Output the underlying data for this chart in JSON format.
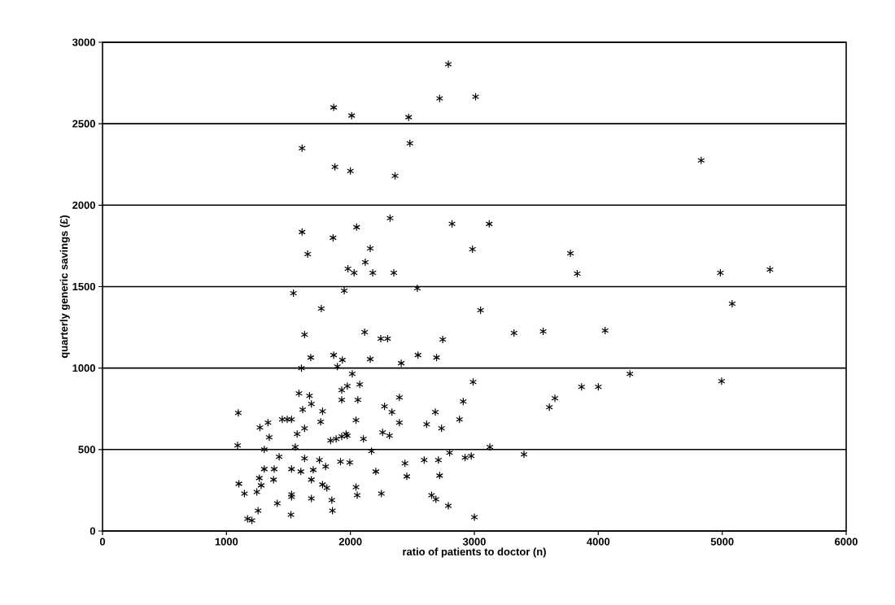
{
  "chart_data": {
    "type": "scatter",
    "xlabel": "ratio of patients to doctor (n)",
    "ylabel": "quarterly generic savings (£)",
    "x": [
      1865,
      2010,
      2470,
      2480,
      1610,
      1875,
      2000,
      2360,
      2320,
      1610,
      2050,
      1860,
      2160,
      1655,
      2120,
      1980,
      2030,
      2180,
      2350,
      1540,
      1950,
      2790,
      2720,
      3010,
      4830,
      2820,
      3120,
      2985,
      3775,
      3830,
      4985,
      5385,
      2540,
      1630,
      1680,
      1605,
      1585,
      1615,
      1095,
      1270,
      1335,
      1345,
      1450,
      1490,
      1525,
      1570,
      1630,
      1090,
      1305,
      1555,
      1425,
      1630,
      1305,
      1385,
      1525,
      1600,
      1265,
      1380,
      1100,
      1280,
      1145,
      1245,
      1525,
      1525,
      1410,
      1255,
      1520,
      1170,
      1205,
      1685,
      1685,
      1670,
      1685,
      1775,
      1760,
      1700,
      1750,
      1800,
      1775,
      1810,
      1850,
      1855,
      1765,
      3050,
      2115,
      2245,
      2300,
      2745,
      3320,
      1865,
      1935,
      2160,
      2545,
      2695,
      2410,
      1895,
      2015,
      1975,
      2075,
      1930,
      2990,
      1930,
      2060,
      2395,
      2910,
      2275,
      2335,
      2685,
      2880,
      2045,
      2395,
      2615,
      2735,
      2260,
      2315,
      1840,
      1885,
      1930,
      1965,
      1975,
      2105,
      2170,
      3125,
      3400,
      1920,
      1995,
      2440,
      2595,
      2710,
      2800,
      2925,
      2975,
      2205,
      2455,
      2720,
      2045,
      2055,
      2250,
      2655,
      2690,
      2790,
      3000,
      5080,
      3555,
      4055,
      4255,
      4995,
      3865,
      4000,
      3650,
      3605
    ],
    "values": [
      2600,
      2550,
      2540,
      2380,
      2350,
      2235,
      2210,
      2180,
      1920,
      1835,
      1865,
      1800,
      1735,
      1700,
      1650,
      1610,
      1585,
      1585,
      1585,
      1460,
      1475,
      2865,
      2655,
      2665,
      2275,
      1885,
      1885,
      1730,
      1705,
      1580,
      1585,
      1605,
      1490,
      1205,
      1065,
      1000,
      845,
      745,
      725,
      635,
      665,
      575,
      685,
      685,
      685,
      595,
      630,
      525,
      500,
      515,
      455,
      445,
      380,
      380,
      380,
      365,
      325,
      315,
      290,
      280,
      230,
      240,
      225,
      210,
      170,
      125,
      100,
      75,
      65,
      200,
      315,
      830,
      780,
      735,
      670,
      375,
      435,
      395,
      285,
      265,
      190,
      125,
      1365,
      1355,
      1220,
      1180,
      1180,
      1175,
      1215,
      1080,
      1050,
      1055,
      1080,
      1065,
      1030,
      1010,
      965,
      890,
      900,
      865,
      915,
      805,
      805,
      820,
      795,
      765,
      730,
      730,
      685,
      680,
      665,
      655,
      630,
      605,
      585,
      555,
      565,
      580,
      595,
      585,
      565,
      490,
      515,
      470,
      425,
      420,
      415,
      435,
      435,
      480,
      450,
      460,
      365,
      335,
      340,
      270,
      220,
      230,
      220,
      195,
      155,
      85,
      1395,
      1225,
      1230,
      965,
      920,
      885,
      885,
      815,
      760
    ],
    "color": "#000000",
    "marker": "cross",
    "xlim": [
      0,
      6000
    ],
    "ylim": [
      0,
      3000
    ],
    "xticks": [
      0,
      1000,
      2000,
      3000,
      4000,
      5000,
      6000
    ],
    "yticks": [
      0,
      500,
      1000,
      1500,
      2000,
      2500,
      3000
    ],
    "grid": "y"
  }
}
